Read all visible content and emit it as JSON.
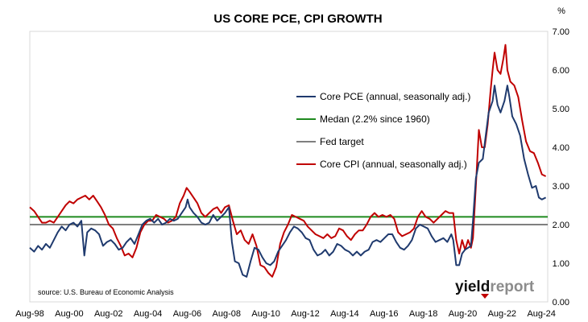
{
  "chart_data": {
    "type": "line",
    "title": "US CORE PCE, CPI GROWTH",
    "y_unit": "%",
    "ylim": [
      0,
      7
    ],
    "yticks": [
      "0.00",
      "1.00",
      "2.00",
      "3.00",
      "4.00",
      "5.00",
      "6.00",
      "7.00"
    ],
    "xlim": [
      1998.58,
      2024.9
    ],
    "xticks": [
      {
        "label": "Aug-98",
        "t": 1998.58
      },
      {
        "label": "Aug-00",
        "t": 2000.58
      },
      {
        "label": "Aug-02",
        "t": 2002.58
      },
      {
        "label": "Aug-04",
        "t": 2004.58
      },
      {
        "label": "Aug-06",
        "t": 2006.58
      },
      {
        "label": "Aug-08",
        "t": 2008.58
      },
      {
        "label": "Aug-10",
        "t": 2010.58
      },
      {
        "label": "Aug-12",
        "t": 2012.58
      },
      {
        "label": "Aug-14",
        "t": 2014.58
      },
      {
        "label": "Aug-16",
        "t": 2016.58
      },
      {
        "label": "Aug-18",
        "t": 2018.58
      },
      {
        "label": "Aug-20",
        "t": 2020.58
      },
      {
        "label": "Aug-22",
        "t": 2022.58
      },
      {
        "label": "Aug-24",
        "t": 2024.58
      }
    ],
    "grid": false,
    "legend_position": "upper-center-right",
    "series": [
      {
        "name": "Core PCE (annual, seasonally adj.)",
        "color": "#1f3a6e",
        "points": [
          [
            1998.58,
            1.4
          ],
          [
            1998.8,
            1.3
          ],
          [
            1999.0,
            1.45
          ],
          [
            1999.2,
            1.35
          ],
          [
            1999.4,
            1.5
          ],
          [
            1999.6,
            1.4
          ],
          [
            1999.8,
            1.6
          ],
          [
            2000.0,
            1.8
          ],
          [
            2000.2,
            1.95
          ],
          [
            2000.4,
            1.85
          ],
          [
            2000.6,
            2.0
          ],
          [
            2000.8,
            2.05
          ],
          [
            2001.0,
            1.95
          ],
          [
            2001.2,
            2.1
          ],
          [
            2001.35,
            1.2
          ],
          [
            2001.5,
            1.8
          ],
          [
            2001.7,
            1.9
          ],
          [
            2001.9,
            1.85
          ],
          [
            2002.1,
            1.75
          ],
          [
            2002.3,
            1.45
          ],
          [
            2002.5,
            1.55
          ],
          [
            2002.7,
            1.6
          ],
          [
            2002.9,
            1.5
          ],
          [
            2003.1,
            1.35
          ],
          [
            2003.3,
            1.4
          ],
          [
            2003.5,
            1.55
          ],
          [
            2003.7,
            1.65
          ],
          [
            2003.9,
            1.5
          ],
          [
            2004.1,
            1.75
          ],
          [
            2004.3,
            2.0
          ],
          [
            2004.5,
            2.1
          ],
          [
            2004.7,
            2.15
          ],
          [
            2004.9,
            2.05
          ],
          [
            2005.1,
            2.15
          ],
          [
            2005.3,
            2.0
          ],
          [
            2005.5,
            2.05
          ],
          [
            2005.7,
            2.15
          ],
          [
            2005.9,
            2.1
          ],
          [
            2006.1,
            2.15
          ],
          [
            2006.3,
            2.3
          ],
          [
            2006.5,
            2.45
          ],
          [
            2006.6,
            2.65
          ],
          [
            2006.7,
            2.45
          ],
          [
            2006.9,
            2.3
          ],
          [
            2007.1,
            2.2
          ],
          [
            2007.3,
            2.05
          ],
          [
            2007.5,
            2.0
          ],
          [
            2007.7,
            2.05
          ],
          [
            2007.9,
            2.25
          ],
          [
            2008.1,
            2.1
          ],
          [
            2008.3,
            2.2
          ],
          [
            2008.5,
            2.3
          ],
          [
            2008.7,
            2.45
          ],
          [
            2008.85,
            1.55
          ],
          [
            2009.0,
            1.05
          ],
          [
            2009.2,
            1.0
          ],
          [
            2009.4,
            0.7
          ],
          [
            2009.6,
            0.65
          ],
          [
            2009.8,
            1.05
          ],
          [
            2010.0,
            1.4
          ],
          [
            2010.2,
            1.35
          ],
          [
            2010.4,
            1.15
          ],
          [
            2010.6,
            1.0
          ],
          [
            2010.8,
            0.95
          ],
          [
            2011.0,
            1.05
          ],
          [
            2011.2,
            1.3
          ],
          [
            2011.4,
            1.45
          ],
          [
            2011.6,
            1.6
          ],
          [
            2011.8,
            1.8
          ],
          [
            2012.0,
            1.95
          ],
          [
            2012.2,
            1.9
          ],
          [
            2012.4,
            1.8
          ],
          [
            2012.6,
            1.65
          ],
          [
            2012.8,
            1.6
          ],
          [
            2013.0,
            1.35
          ],
          [
            2013.2,
            1.2
          ],
          [
            2013.4,
            1.25
          ],
          [
            2013.6,
            1.35
          ],
          [
            2013.8,
            1.2
          ],
          [
            2014.0,
            1.3
          ],
          [
            2014.2,
            1.5
          ],
          [
            2014.4,
            1.45
          ],
          [
            2014.6,
            1.35
          ],
          [
            2014.8,
            1.3
          ],
          [
            2015.0,
            1.2
          ],
          [
            2015.2,
            1.3
          ],
          [
            2015.4,
            1.2
          ],
          [
            2015.6,
            1.3
          ],
          [
            2015.8,
            1.35
          ],
          [
            2016.0,
            1.55
          ],
          [
            2016.2,
            1.6
          ],
          [
            2016.4,
            1.55
          ],
          [
            2016.6,
            1.65
          ],
          [
            2016.8,
            1.75
          ],
          [
            2017.0,
            1.75
          ],
          [
            2017.2,
            1.55
          ],
          [
            2017.4,
            1.4
          ],
          [
            2017.6,
            1.35
          ],
          [
            2017.8,
            1.45
          ],
          [
            2018.0,
            1.6
          ],
          [
            2018.2,
            1.9
          ],
          [
            2018.4,
            2.0
          ],
          [
            2018.6,
            1.95
          ],
          [
            2018.8,
            1.9
          ],
          [
            2019.0,
            1.7
          ],
          [
            2019.2,
            1.55
          ],
          [
            2019.4,
            1.6
          ],
          [
            2019.6,
            1.65
          ],
          [
            2019.8,
            1.55
          ],
          [
            2020.0,
            1.75
          ],
          [
            2020.1,
            1.6
          ],
          [
            2020.25,
            0.95
          ],
          [
            2020.4,
            0.95
          ],
          [
            2020.55,
            1.25
          ],
          [
            2020.7,
            1.35
          ],
          [
            2020.85,
            1.4
          ],
          [
            2021.0,
            1.45
          ],
          [
            2021.1,
            2.1
          ],
          [
            2021.25,
            3.2
          ],
          [
            2021.4,
            3.6
          ],
          [
            2021.6,
            3.7
          ],
          [
            2021.75,
            4.3
          ],
          [
            2021.9,
            4.9
          ],
          [
            2022.1,
            5.2
          ],
          [
            2022.2,
            5.6
          ],
          [
            2022.35,
            5.1
          ],
          [
            2022.5,
            4.9
          ],
          [
            2022.7,
            5.2
          ],
          [
            2022.85,
            5.6
          ],
          [
            2022.95,
            5.3
          ],
          [
            2023.1,
            4.8
          ],
          [
            2023.3,
            4.6
          ],
          [
            2023.5,
            4.3
          ],
          [
            2023.7,
            3.7
          ],
          [
            2023.9,
            3.3
          ],
          [
            2024.1,
            2.95
          ],
          [
            2024.3,
            3.0
          ],
          [
            2024.45,
            2.7
          ],
          [
            2024.6,
            2.65
          ],
          [
            2024.8,
            2.7
          ]
        ]
      },
      {
        "name": "Medan (2.2% since 1960)",
        "color": "#1f8a1f",
        "points": [
          [
            1998.58,
            2.2
          ],
          [
            2024.9,
            2.2
          ]
        ]
      },
      {
        "name": "Fed target",
        "color": "#7f7f7f",
        "points": [
          [
            1998.58,
            2.0
          ],
          [
            2024.9,
            2.0
          ]
        ]
      },
      {
        "name": "Core CPI (annual, seasonally adj.)",
        "color": "#c00000",
        "points": [
          [
            1998.58,
            2.45
          ],
          [
            1998.8,
            2.35
          ],
          [
            1999.0,
            2.2
          ],
          [
            1999.2,
            2.05
          ],
          [
            1999.4,
            2.05
          ],
          [
            1999.6,
            2.1
          ],
          [
            1999.8,
            2.05
          ],
          [
            2000.0,
            2.2
          ],
          [
            2000.2,
            2.35
          ],
          [
            2000.4,
            2.5
          ],
          [
            2000.6,
            2.6
          ],
          [
            2000.8,
            2.55
          ],
          [
            2001.0,
            2.65
          ],
          [
            2001.2,
            2.7
          ],
          [
            2001.4,
            2.75
          ],
          [
            2001.6,
            2.65
          ],
          [
            2001.8,
            2.75
          ],
          [
            2002.0,
            2.6
          ],
          [
            2002.2,
            2.45
          ],
          [
            2002.4,
            2.25
          ],
          [
            2002.6,
            2.0
          ],
          [
            2002.8,
            1.9
          ],
          [
            2003.0,
            1.65
          ],
          [
            2003.2,
            1.45
          ],
          [
            2003.4,
            1.2
          ],
          [
            2003.6,
            1.25
          ],
          [
            2003.8,
            1.15
          ],
          [
            2004.0,
            1.4
          ],
          [
            2004.2,
            1.8
          ],
          [
            2004.4,
            2.0
          ],
          [
            2004.6,
            2.1
          ],
          [
            2004.8,
            2.1
          ],
          [
            2005.0,
            2.25
          ],
          [
            2005.2,
            2.2
          ],
          [
            2005.4,
            2.15
          ],
          [
            2005.6,
            2.05
          ],
          [
            2005.8,
            2.1
          ],
          [
            2006.0,
            2.2
          ],
          [
            2006.2,
            2.55
          ],
          [
            2006.4,
            2.75
          ],
          [
            2006.55,
            2.95
          ],
          [
            2006.7,
            2.85
          ],
          [
            2006.9,
            2.7
          ],
          [
            2007.1,
            2.55
          ],
          [
            2007.3,
            2.3
          ],
          [
            2007.5,
            2.2
          ],
          [
            2007.7,
            2.3
          ],
          [
            2007.9,
            2.4
          ],
          [
            2008.1,
            2.45
          ],
          [
            2008.3,
            2.3
          ],
          [
            2008.5,
            2.45
          ],
          [
            2008.7,
            2.5
          ],
          [
            2008.9,
            2.1
          ],
          [
            2009.1,
            1.75
          ],
          [
            2009.3,
            1.85
          ],
          [
            2009.5,
            1.6
          ],
          [
            2009.7,
            1.5
          ],
          [
            2009.9,
            1.75
          ],
          [
            2010.1,
            1.45
          ],
          [
            2010.3,
            0.95
          ],
          [
            2010.5,
            0.9
          ],
          [
            2010.7,
            0.75
          ],
          [
            2010.9,
            0.65
          ],
          [
            2011.1,
            0.9
          ],
          [
            2011.3,
            1.5
          ],
          [
            2011.5,
            1.8
          ],
          [
            2011.7,
            2.0
          ],
          [
            2011.9,
            2.25
          ],
          [
            2012.1,
            2.2
          ],
          [
            2012.3,
            2.15
          ],
          [
            2012.5,
            2.1
          ],
          [
            2012.7,
            1.95
          ],
          [
            2012.9,
            1.85
          ],
          [
            2013.1,
            1.75
          ],
          [
            2013.3,
            1.7
          ],
          [
            2013.5,
            1.65
          ],
          [
            2013.7,
            1.75
          ],
          [
            2013.9,
            1.65
          ],
          [
            2014.1,
            1.7
          ],
          [
            2014.3,
            1.9
          ],
          [
            2014.5,
            1.85
          ],
          [
            2014.7,
            1.7
          ],
          [
            2014.9,
            1.6
          ],
          [
            2015.1,
            1.75
          ],
          [
            2015.3,
            1.85
          ],
          [
            2015.5,
            1.85
          ],
          [
            2015.7,
            2.0
          ],
          [
            2015.9,
            2.2
          ],
          [
            2016.1,
            2.3
          ],
          [
            2016.3,
            2.2
          ],
          [
            2016.5,
            2.25
          ],
          [
            2016.7,
            2.2
          ],
          [
            2016.9,
            2.25
          ],
          [
            2017.1,
            2.15
          ],
          [
            2017.3,
            1.8
          ],
          [
            2017.5,
            1.7
          ],
          [
            2017.7,
            1.75
          ],
          [
            2017.9,
            1.8
          ],
          [
            2018.1,
            1.9
          ],
          [
            2018.3,
            2.2
          ],
          [
            2018.5,
            2.35
          ],
          [
            2018.7,
            2.2
          ],
          [
            2018.9,
            2.15
          ],
          [
            2019.1,
            2.05
          ],
          [
            2019.3,
            2.15
          ],
          [
            2019.5,
            2.25
          ],
          [
            2019.7,
            2.35
          ],
          [
            2019.9,
            2.3
          ],
          [
            2020.1,
            2.3
          ],
          [
            2020.25,
            1.6
          ],
          [
            2020.4,
            1.25
          ],
          [
            2020.55,
            1.6
          ],
          [
            2020.7,
            1.35
          ],
          [
            2020.85,
            1.6
          ],
          [
            2021.0,
            1.4
          ],
          [
            2021.1,
            1.65
          ],
          [
            2021.25,
            3.0
          ],
          [
            2021.4,
            4.45
          ],
          [
            2021.55,
            4.0
          ],
          [
            2021.7,
            4.0
          ],
          [
            2021.85,
            4.6
          ],
          [
            2022.0,
            5.5
          ],
          [
            2022.1,
            6.0
          ],
          [
            2022.2,
            6.45
          ],
          [
            2022.35,
            6.0
          ],
          [
            2022.5,
            5.9
          ],
          [
            2022.65,
            6.3
          ],
          [
            2022.75,
            6.65
          ],
          [
            2022.85,
            6.0
          ],
          [
            2023.0,
            5.7
          ],
          [
            2023.2,
            5.6
          ],
          [
            2023.4,
            5.3
          ],
          [
            2023.6,
            4.7
          ],
          [
            2023.8,
            4.15
          ],
          [
            2024.0,
            3.9
          ],
          [
            2024.2,
            3.85
          ],
          [
            2024.4,
            3.6
          ],
          [
            2024.6,
            3.3
          ],
          [
            2024.8,
            3.25
          ]
        ]
      }
    ],
    "legend_order": [
      0,
      1,
      2,
      3
    ],
    "source_note": "source: U.S. Bureau of Economic Analysis",
    "logo": {
      "part1": "yield",
      "part2": "report"
    }
  }
}
